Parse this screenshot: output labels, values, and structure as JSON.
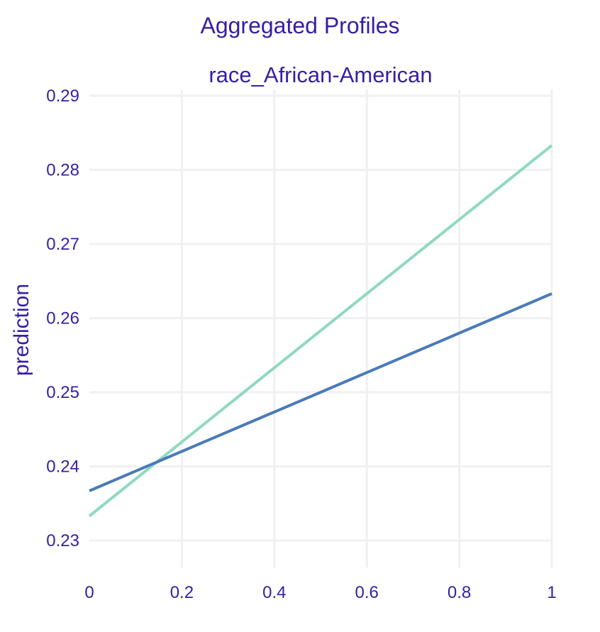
{
  "chart_data": {
    "type": "line",
    "title": "Aggregated Profiles",
    "subtitle": "race_African-American",
    "xlabel": "",
    "ylabel": "prediction",
    "xlim": [
      0,
      1
    ],
    "ylim": [
      0.23,
      0.29
    ],
    "x_ticks": [
      0,
      0.2,
      0.4,
      0.6,
      0.8,
      1
    ],
    "x_tick_labels": [
      "0",
      "0.2",
      "0.4",
      "0.6",
      "0.8",
      "1"
    ],
    "y_ticks": [
      0.23,
      0.24,
      0.25,
      0.26,
      0.27,
      0.28,
      0.29
    ],
    "y_tick_labels": [
      "0.23",
      "0.24",
      "0.25",
      "0.26",
      "0.27",
      "0.28",
      "0.29"
    ],
    "grid": true,
    "legend": "none",
    "series": [
      {
        "color": "#8fd9bf",
        "x": [
          0,
          1
        ],
        "y": [
          0.2333,
          0.2833
        ]
      },
      {
        "color": "#4a7ab8",
        "x": [
          0,
          1
        ],
        "y": [
          0.2367,
          0.2633
        ]
      }
    ]
  },
  "colors": {
    "text": "#371ea3",
    "grid": "#f0f0f4"
  }
}
